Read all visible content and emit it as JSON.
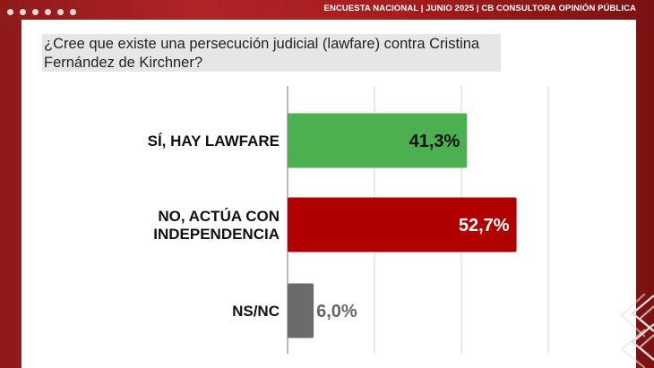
{
  "header": {
    "text": "ENCUESTA NACIONAL | JUNIO 2025 | CB CONSULTORA OPINIÓN PÚBLICA"
  },
  "question": "¿Cree que existe una persecución judicial (lawfare) contra Cristina Fernández de Kirchner?",
  "chart_data": {
    "type": "bar",
    "orientation": "horizontal",
    "title": "¿Cree que existe una persecución judicial (lawfare) contra Cristina Fernández de Kirchner?",
    "categories": [
      [
        "SÍ, HAY LAWFARE"
      ],
      [
        "NO, ACTÚA CON",
        "INDEPENDENCIA"
      ],
      [
        "NS/NC"
      ]
    ],
    "values": [
      41.3,
      52.7,
      6.0
    ],
    "value_labels": [
      "41,3%",
      "52,7%",
      "6,0%"
    ],
    "colors": [
      "#4caf50",
      "#b00000",
      "#6b6b6b"
    ],
    "value_label_colors": [
      "#111111",
      "#ffffff",
      "#666666"
    ],
    "value_label_position": [
      "inside",
      "inside",
      "outside"
    ],
    "xlim": [
      0,
      60
    ],
    "grid": true
  }
}
